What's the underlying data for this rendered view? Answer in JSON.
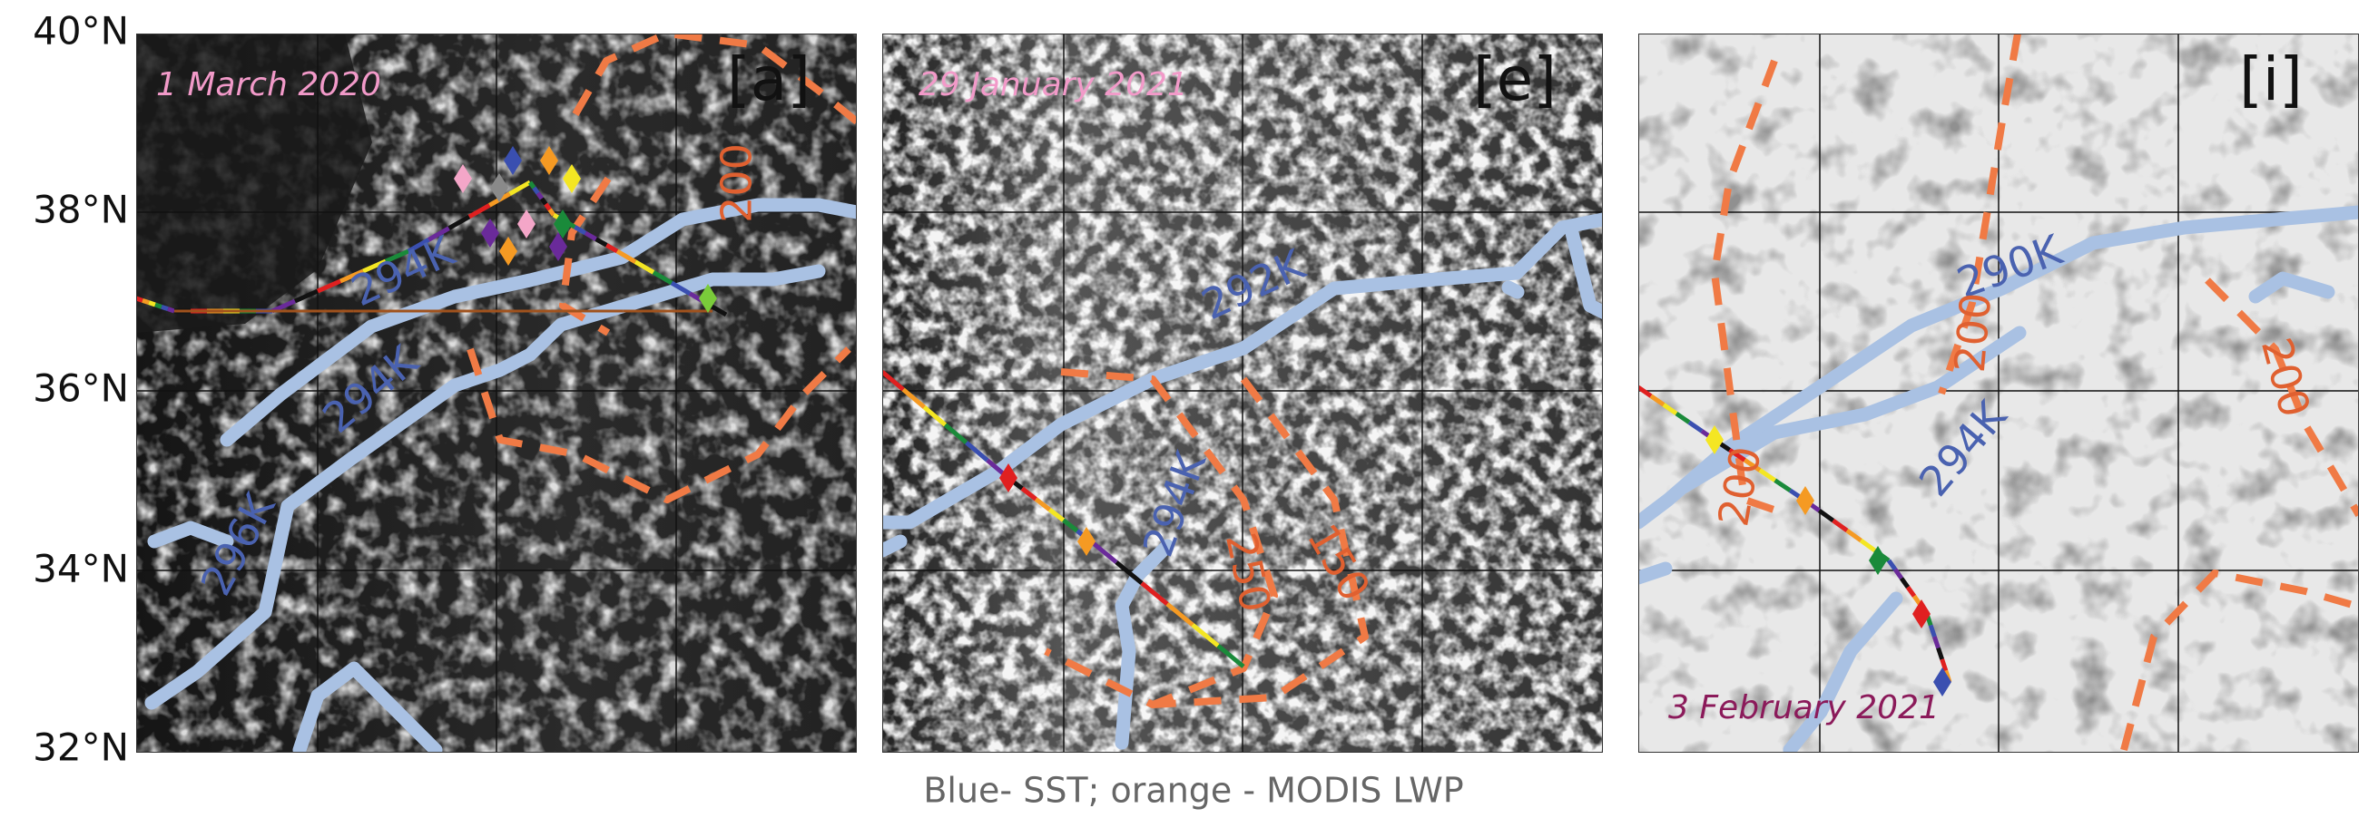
{
  "y_axis": {
    "labels": [
      "40°N",
      "38°N",
      "36°N",
      "34°N",
      "32°N"
    ]
  },
  "panels": [
    {
      "label": "[a]",
      "date": "1 March 2020",
      "contour_labels": [
        "200",
        "294K",
        "294K",
        "296K"
      ]
    },
    {
      "label": "[e]",
      "date": "29 January 2021",
      "contour_labels": [
        "292K",
        "294K",
        "250",
        "150"
      ]
    },
    {
      "label": "[i]",
      "date": "3 February 2021",
      "contour_labels": [
        "290K",
        "200",
        "294K",
        "200",
        "200"
      ]
    }
  ],
  "caption": "Blue- SST; orange - MODIS LWP"
}
